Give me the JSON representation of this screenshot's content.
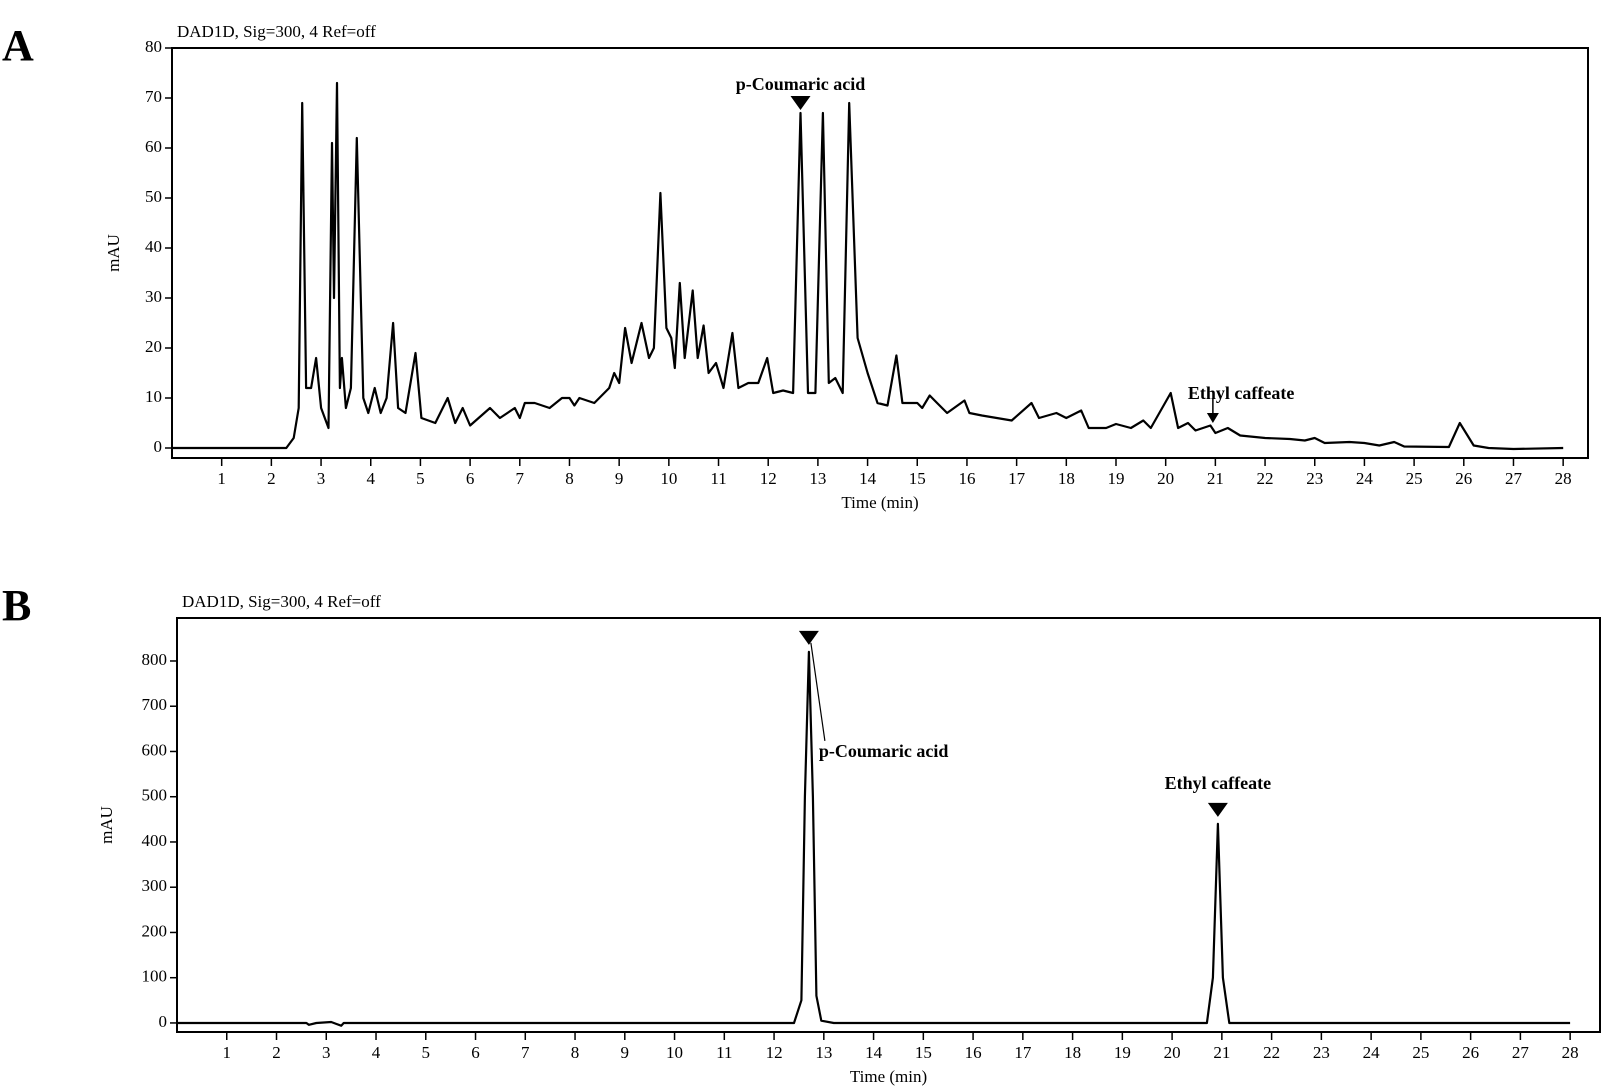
{
  "chart_data": [
    {
      "type": "line",
      "panel": "A",
      "title": "DAD1D, Sig=300, 4 Ref=off",
      "x_label": "Time (min)",
      "y_label": "mAU",
      "x": [
        0,
        2.3,
        2.45,
        2.55,
        2.62,
        2.7,
        2.8,
        2.9,
        3.0,
        3.15,
        3.22,
        3.26,
        3.32,
        3.38,
        3.42,
        3.5,
        3.6,
        3.72,
        3.85,
        3.95,
        4.08,
        4.2,
        4.32,
        4.45,
        4.55,
        4.7,
        4.9,
        5.02,
        5.3,
        5.55,
        5.7,
        5.85,
        6.0,
        6.4,
        6.6,
        6.9,
        7.0,
        7.1,
        7.3,
        7.6,
        7.85,
        8.0,
        8.1,
        8.2,
        8.5,
        8.8,
        8.9,
        9.0,
        9.12,
        9.25,
        9.45,
        9.6,
        9.7,
        9.83,
        9.95,
        10.05,
        10.12,
        10.22,
        10.32,
        10.48,
        10.58,
        10.7,
        10.8,
        10.95,
        11.1,
        11.28,
        11.4,
        11.6,
        11.8,
        11.98,
        12.1,
        12.3,
        12.5,
        12.65,
        12.8,
        12.95,
        13.1,
        13.22,
        13.35,
        13.5,
        13.63,
        13.8,
        14.0,
        14.2,
        14.4,
        14.58,
        14.7,
        15.0,
        15.1,
        15.25,
        15.4,
        15.6,
        15.95,
        16.05,
        16.3,
        16.6,
        16.9,
        17.3,
        17.45,
        17.8,
        18.0,
        18.3,
        18.45,
        18.8,
        19.0,
        19.3,
        19.55,
        19.7,
        20.1,
        20.25,
        20.45,
        20.6,
        20.9,
        21.0,
        21.25,
        21.5,
        22.0,
        22.5,
        22.8,
        23.0,
        23.2,
        23.7,
        24.0,
        24.3,
        24.6,
        24.8,
        25.7,
        25.92,
        26.2,
        26.5,
        27.0,
        28.0
      ],
      "series": [
        {
          "color": "#000000",
          "values": [
            0,
            0,
            2,
            8,
            69,
            12,
            12,
            18,
            8,
            4,
            61,
            30,
            73,
            12,
            18,
            8,
            12,
            62,
            10,
            7,
            12,
            7,
            10,
            25,
            8,
            7,
            19,
            6,
            5,
            10,
            5,
            8,
            4.5,
            8,
            6,
            8,
            6,
            9,
            9,
            8,
            10,
            10,
            8.5,
            10,
            9,
            12,
            15,
            13,
            24,
            17,
            25,
            18,
            20,
            51,
            24,
            22,
            16,
            33,
            18,
            31.5,
            18,
            24.5,
            15,
            17,
            12,
            23,
            12,
            13,
            13,
            18,
            11,
            11.5,
            11,
            67,
            11,
            11,
            67,
            13,
            14,
            11,
            69,
            22,
            15,
            9,
            8.5,
            18.5,
            9,
            9,
            8,
            10.5,
            9,
            7,
            9.5,
            7,
            6.5,
            6,
            5.5,
            9,
            6,
            7,
            6,
            7.5,
            4,
            4,
            4.8,
            4,
            5.5,
            4,
            11,
            4,
            5,
            3.5,
            4.5,
            3,
            4,
            2.5,
            2,
            1.8,
            1.5,
            2,
            1,
            1.2,
            1,
            0.5,
            1.2,
            0.3,
            0.2,
            5,
            0.5,
            0,
            -0.2,
            0
          ]
        }
      ],
      "xlim": [
        0,
        28.5
      ],
      "ylim": [
        -2,
        80
      ],
      "xticks": [
        1,
        2,
        3,
        4,
        5,
        6,
        7,
        8,
        9,
        10,
        11,
        12,
        13,
        14,
        15,
        16,
        17,
        18,
        19,
        20,
        21,
        22,
        23,
        24,
        25,
        26,
        27,
        28
      ],
      "yticks": [
        0,
        10,
        20,
        30,
        40,
        50,
        60,
        70,
        80
      ],
      "annotations": [
        {
          "text": "p-Coumaric acid",
          "x": 12.65,
          "y": 68
        },
        {
          "text": "Ethyl caffeate",
          "x": 20.95,
          "y": 5
        }
      ]
    },
    {
      "type": "line",
      "panel": "B",
      "title": "DAD1D, Sig=300, 4 Ref=off",
      "x_label": "Time (min)",
      "y_label": "mAU",
      "x": [
        0,
        2.6,
        2.65,
        2.8,
        3.1,
        3.2,
        3.3,
        3.35,
        12.4,
        12.55,
        12.62,
        12.7,
        12.78,
        12.85,
        12.95,
        13.2,
        20.7,
        20.82,
        20.92,
        21.02,
        21.15,
        28.0
      ],
      "series": [
        {
          "color": "#000000",
          "values": [
            0,
            0,
            -4,
            0,
            2,
            -2,
            -6,
            0,
            0,
            50,
            500,
            820,
            500,
            60,
            5,
            0,
            0,
            100,
            440,
            100,
            0,
            0
          ]
        }
      ],
      "xlim": [
        0,
        28.6
      ],
      "ylim": [
        -20,
        895
      ],
      "xticks": [
        1,
        2,
        3,
        4,
        5,
        6,
        7,
        8,
        9,
        10,
        11,
        12,
        13,
        14,
        15,
        16,
        17,
        18,
        19,
        20,
        21,
        22,
        23,
        24,
        25,
        26,
        27,
        28
      ],
      "yticks": [
        0,
        100,
        200,
        300,
        400,
        500,
        600,
        700,
        800
      ],
      "annotations": [
        {
          "text": "p-Coumaric acid",
          "x": 12.7,
          "y": 840
        },
        {
          "text": "Ethyl caffeate",
          "x": 20.92,
          "y": 460
        }
      ]
    }
  ]
}
